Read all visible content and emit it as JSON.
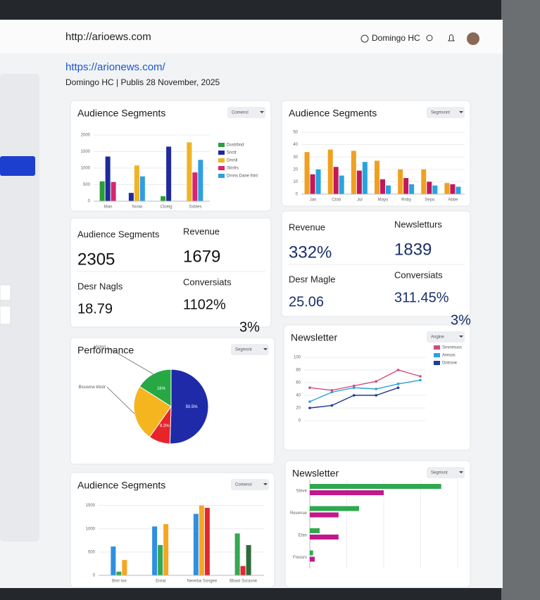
{
  "browser": {
    "url": "http://arioews.com",
    "user": "Domingo HC"
  },
  "page": {
    "link": "https://arionews.com/",
    "byline": "Domingo HC | Publis 28 November, 2025"
  },
  "chart_data": [
    {
      "type": "bar",
      "title": "Audience Segments",
      "filter": "Comensl",
      "categories": [
        "Man",
        "Nvow",
        "Cloeig",
        "Sxbtes"
      ],
      "ylim": [
        0,
        2000
      ],
      "yticks": [
        0,
        500,
        1000,
        1500,
        2000
      ],
      "grid": true,
      "legend": "right",
      "series": [
        {
          "name": "Dustrbnd",
          "color": "#2a9d3a",
          "values": [
            600,
            null,
            150,
            null
          ]
        },
        {
          "name": "Snctt",
          "color": "#1f2a9c",
          "values": [
            1350,
            250,
            1650,
            null
          ]
        },
        {
          "name": "Dmnll",
          "color": "#f0b323",
          "values": [
            null,
            1080,
            null,
            1780
          ]
        },
        {
          "name": "Sbsfrs",
          "color": "#d6246e",
          "values": [
            580,
            null,
            null,
            870
          ]
        },
        {
          "name": "Drnns Dane frtnt",
          "color": "#2f9fe0",
          "values": [
            null,
            750,
            null,
            1250
          ]
        }
      ]
    },
    {
      "type": "bar",
      "title": "Audience Segments",
      "filter": "Segmsnnt",
      "categories": [
        "Jan",
        "Ctob",
        "Jul",
        "Mayo",
        "Rnby",
        "Sepo",
        "Abbe"
      ],
      "ylim": [
        0,
        50
      ],
      "yticks": [
        0,
        10,
        20,
        30,
        40,
        50
      ],
      "grid": true,
      "series": [
        {
          "name": null,
          "color": "#f0a020",
          "values": [
            34,
            36,
            35,
            27,
            20,
            20,
            9
          ]
        },
        {
          "name": null,
          "color": "#c2185b",
          "values": [
            16,
            22,
            19,
            12,
            13,
            10,
            8
          ]
        },
        {
          "name": null,
          "color": "#29a3e0",
          "values": [
            20,
            15,
            26,
            7,
            8,
            7,
            6
          ]
        }
      ]
    },
    {
      "type": "pie",
      "title": "Performance",
      "filter": "Segmsnt",
      "categories": [
        "Vistnrl",
        null,
        null,
        "Bssoorw trbstr"
      ],
      "values": [
        16,
        50.5,
        9.3,
        24.2
      ],
      "value_labels": [
        "16%",
        "50.5%",
        "9.3%",
        null
      ],
      "colors": [
        "#27a844",
        "#1f2aa8",
        "#e8242a",
        "#f4b51f"
      ]
    },
    {
      "type": "line",
      "title": "Newsletter",
      "filter": "Angine",
      "categories": [
        null,
        null,
        null,
        null,
        null,
        null
      ],
      "ylim": [
        0,
        100
      ],
      "yticks": [
        0,
        20,
        40,
        60,
        80,
        100
      ],
      "grid": true,
      "legend": "right",
      "series": [
        {
          "name": "Snvnmuss",
          "color": "#d64a7a",
          "values": [
            52,
            48,
            55,
            62,
            80,
            70
          ]
        },
        {
          "name": "Aresos",
          "color": "#2aa1d8",
          "values": [
            30,
            45,
            52,
            50,
            58,
            64
          ]
        },
        {
          "name": "Dntrsne",
          "color": "#1e3a9a",
          "values": [
            20,
            24,
            40,
            40,
            52,
            null
          ]
        }
      ]
    },
    {
      "type": "bar",
      "title": "Audience Segments",
      "filter": "Comensl",
      "categories": [
        "Brel Ioe",
        "Ereal",
        "Neveba Sxngee",
        "Bbast Ssrasne"
      ],
      "ylim": [
        0,
        1600
      ],
      "yticks": [
        0,
        500,
        1000,
        1500
      ],
      "grid": true,
      "series": [
        {
          "name": null,
          "color": "#2f8fe0",
          "values": [
            620,
            1050,
            1320,
            null
          ]
        },
        {
          "name": null,
          "color": "#34a853",
          "values": [
            80,
            650,
            null,
            900
          ]
        },
        {
          "name": null,
          "color": "#f5a623",
          "values": [
            330,
            1100,
            1500,
            null
          ]
        },
        {
          "name": null,
          "color": "#e0282e",
          "values": [
            null,
            null,
            1450,
            200
          ]
        },
        {
          "name": null,
          "color": "#2e6b3a",
          "values": [
            null,
            null,
            null,
            650
          ]
        }
      ]
    },
    {
      "type": "hbar",
      "title": "Newsletter",
      "filter": "Segmsnt",
      "categories": [
        "Steve",
        "Revenue",
        "Etan",
        "Fressrs"
      ],
      "xlim": [
        0,
        1800
      ],
      "grid": true,
      "series": [
        {
          "name": null,
          "color": "#2fa84f",
          "values": [
            1600,
            600,
            120,
            40
          ]
        },
        {
          "name": null,
          "color": "#c2188c",
          "values": [
            900,
            350,
            350,
            60
          ]
        }
      ]
    }
  ],
  "kpis": [
    [
      {
        "label": "Audience Segments",
        "value": "2305"
      },
      {
        "label": "Revenue",
        "value": "1679"
      },
      {
        "label": "Desr Nagls",
        "value": "18.79"
      },
      {
        "label": "Conversiats",
        "value": "1102%"
      },
      {
        "label": null,
        "value": "3%"
      }
    ],
    [
      {
        "label": "Revenue",
        "value": "332%"
      },
      {
        "label": "Newsletturs",
        "value": "1839"
      },
      {
        "label": "Desr Magle",
        "value": "25.06"
      },
      {
        "label": "Conversiats",
        "value": "311.45%"
      },
      {
        "label": null,
        "value": "3%"
      }
    ]
  ]
}
